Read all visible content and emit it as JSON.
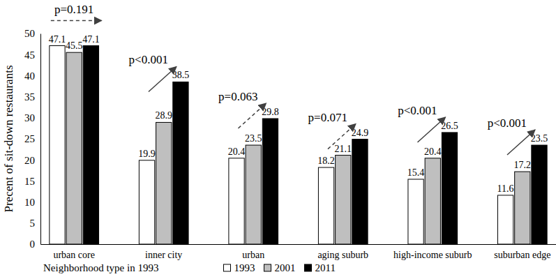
{
  "chart_data": {
    "type": "bar",
    "x_label": "Neighborhood type in 1993",
    "y_label": "Precent of sit-down restaurants",
    "categories": [
      "urban core",
      "inner city",
      "urban",
      "aging suburb",
      "high-income suburb",
      "suburban edge"
    ],
    "series": [
      {
        "name": "1993",
        "color": "#ffffff",
        "values": [
          47.1,
          19.9,
          20.4,
          18.2,
          15.4,
          11.6
        ]
      },
      {
        "name": "2001",
        "color": "#bfbfbf",
        "values": [
          45.5,
          28.9,
          23.5,
          21.1,
          20.4,
          17.2
        ]
      },
      {
        "name": "2011",
        "color": "#000000",
        "values": [
          47.1,
          38.5,
          29.8,
          24.9,
          26.5,
          23.5
        ]
      }
    ],
    "ylim": [
      0,
      50
    ],
    "yticks": [
      0,
      5,
      10,
      15,
      20,
      25,
      30,
      35,
      40,
      45,
      50
    ],
    "grid": false,
    "data_labels": true,
    "legend": "bottom",
    "annotations": [
      {
        "text": "p=0.191",
        "category": "urban core",
        "line_style": "dashed"
      },
      {
        "text": "p<0.001",
        "category": "inner city",
        "line_style": "solid"
      },
      {
        "text": "p=0.063",
        "category": "urban",
        "line_style": "dashed"
      },
      {
        "text": "p=0.071",
        "category": "aging suburb",
        "line_style": "dashed"
      },
      {
        "text": "p<0.001",
        "category": "high-income suburb",
        "line_style": "solid"
      },
      {
        "text": "p<0.001",
        "category": "suburban edge",
        "line_style": "solid"
      }
    ]
  }
}
